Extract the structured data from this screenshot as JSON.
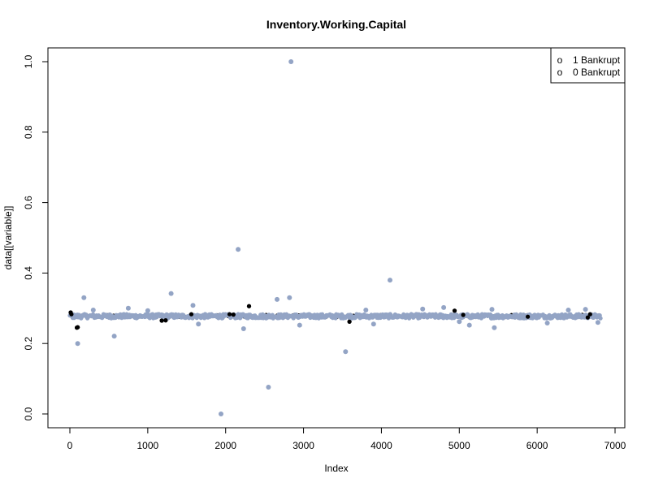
{
  "chart_data": {
    "type": "scatter",
    "title": "Inventory.Working.Capital",
    "xlabel": "Index",
    "ylabel": "data[[variable]]",
    "xlim": [
      0,
      7000
    ],
    "ylim": [
      0.0,
      1.0
    ],
    "x_ticks": [
      0,
      1000,
      2000,
      3000,
      4000,
      5000,
      6000,
      7000
    ],
    "x_tick_labels": [
      "0",
      "1000",
      "2000",
      "3000",
      "4000",
      "5000",
      "6000",
      "7000"
    ],
    "y_ticks": [
      0.0,
      0.2,
      0.4,
      0.6,
      0.8,
      1.0
    ],
    "y_tick_labels": [
      "0.0",
      "0.2",
      "0.4",
      "0.6",
      "0.8",
      "1.0"
    ],
    "grid": false,
    "legend_position": "top-right",
    "legend": [
      {
        "label": "1 Bankrupt",
        "symbol": "o"
      },
      {
        "label": "0 Bankrupt",
        "symbol": "o"
      }
    ],
    "colors": {
      "bankrupt_1": "#000000",
      "bankrupt_0": "#93a4c5"
    },
    "series": [
      {
        "name": "0 Bankrupt",
        "band": {
          "x_from": 0,
          "x_to": 6819,
          "y_center": 0.2775,
          "y_spread": 0.006
        },
        "points": [
          [
            100,
            0.2
          ],
          [
            180,
            0.33
          ],
          [
            570,
            0.221
          ],
          [
            1300,
            0.342
          ],
          [
            1580,
            0.308
          ],
          [
            1940,
            0.0
          ],
          [
            2160,
            0.467
          ],
          [
            2230,
            0.242
          ],
          [
            2550,
            0.076
          ],
          [
            2660,
            0.325
          ],
          [
            2820,
            0.33
          ],
          [
            2840,
            1.0
          ],
          [
            3540,
            0.177
          ],
          [
            4110,
            0.38
          ],
          [
            3900,
            0.255
          ],
          [
            5450,
            0.245
          ],
          [
            5130,
            0.252
          ],
          [
            6130,
            0.258
          ],
          [
            6780,
            0.26
          ],
          [
            4800,
            0.302
          ],
          [
            300,
            0.295
          ],
          [
            750,
            0.3
          ],
          [
            1000,
            0.293
          ],
          [
            1650,
            0.255
          ],
          [
            2950,
            0.252
          ],
          [
            3800,
            0.295
          ],
          [
            4530,
            0.298
          ],
          [
            5000,
            0.262
          ],
          [
            5420,
            0.297
          ],
          [
            6400,
            0.295
          ],
          [
            6620,
            0.297
          ]
        ]
      },
      {
        "name": "1 Bankrupt",
        "band": {
          "x_from": 0,
          "x_to": 6819,
          "y_center": 0.278,
          "y_spread": 0.004
        },
        "points": [
          [
            10,
            0.288
          ],
          [
            20,
            0.283
          ],
          [
            90,
            0.245
          ],
          [
            100,
            0.246
          ],
          [
            1180,
            0.265
          ],
          [
            1230,
            0.266
          ],
          [
            1560,
            0.283
          ],
          [
            2050,
            0.283
          ],
          [
            2100,
            0.282
          ],
          [
            2300,
            0.306
          ],
          [
            3590,
            0.262
          ],
          [
            4940,
            0.293
          ],
          [
            5050,
            0.281
          ],
          [
            5880,
            0.276
          ],
          [
            6650,
            0.274
          ],
          [
            6680,
            0.283
          ]
        ]
      }
    ]
  }
}
